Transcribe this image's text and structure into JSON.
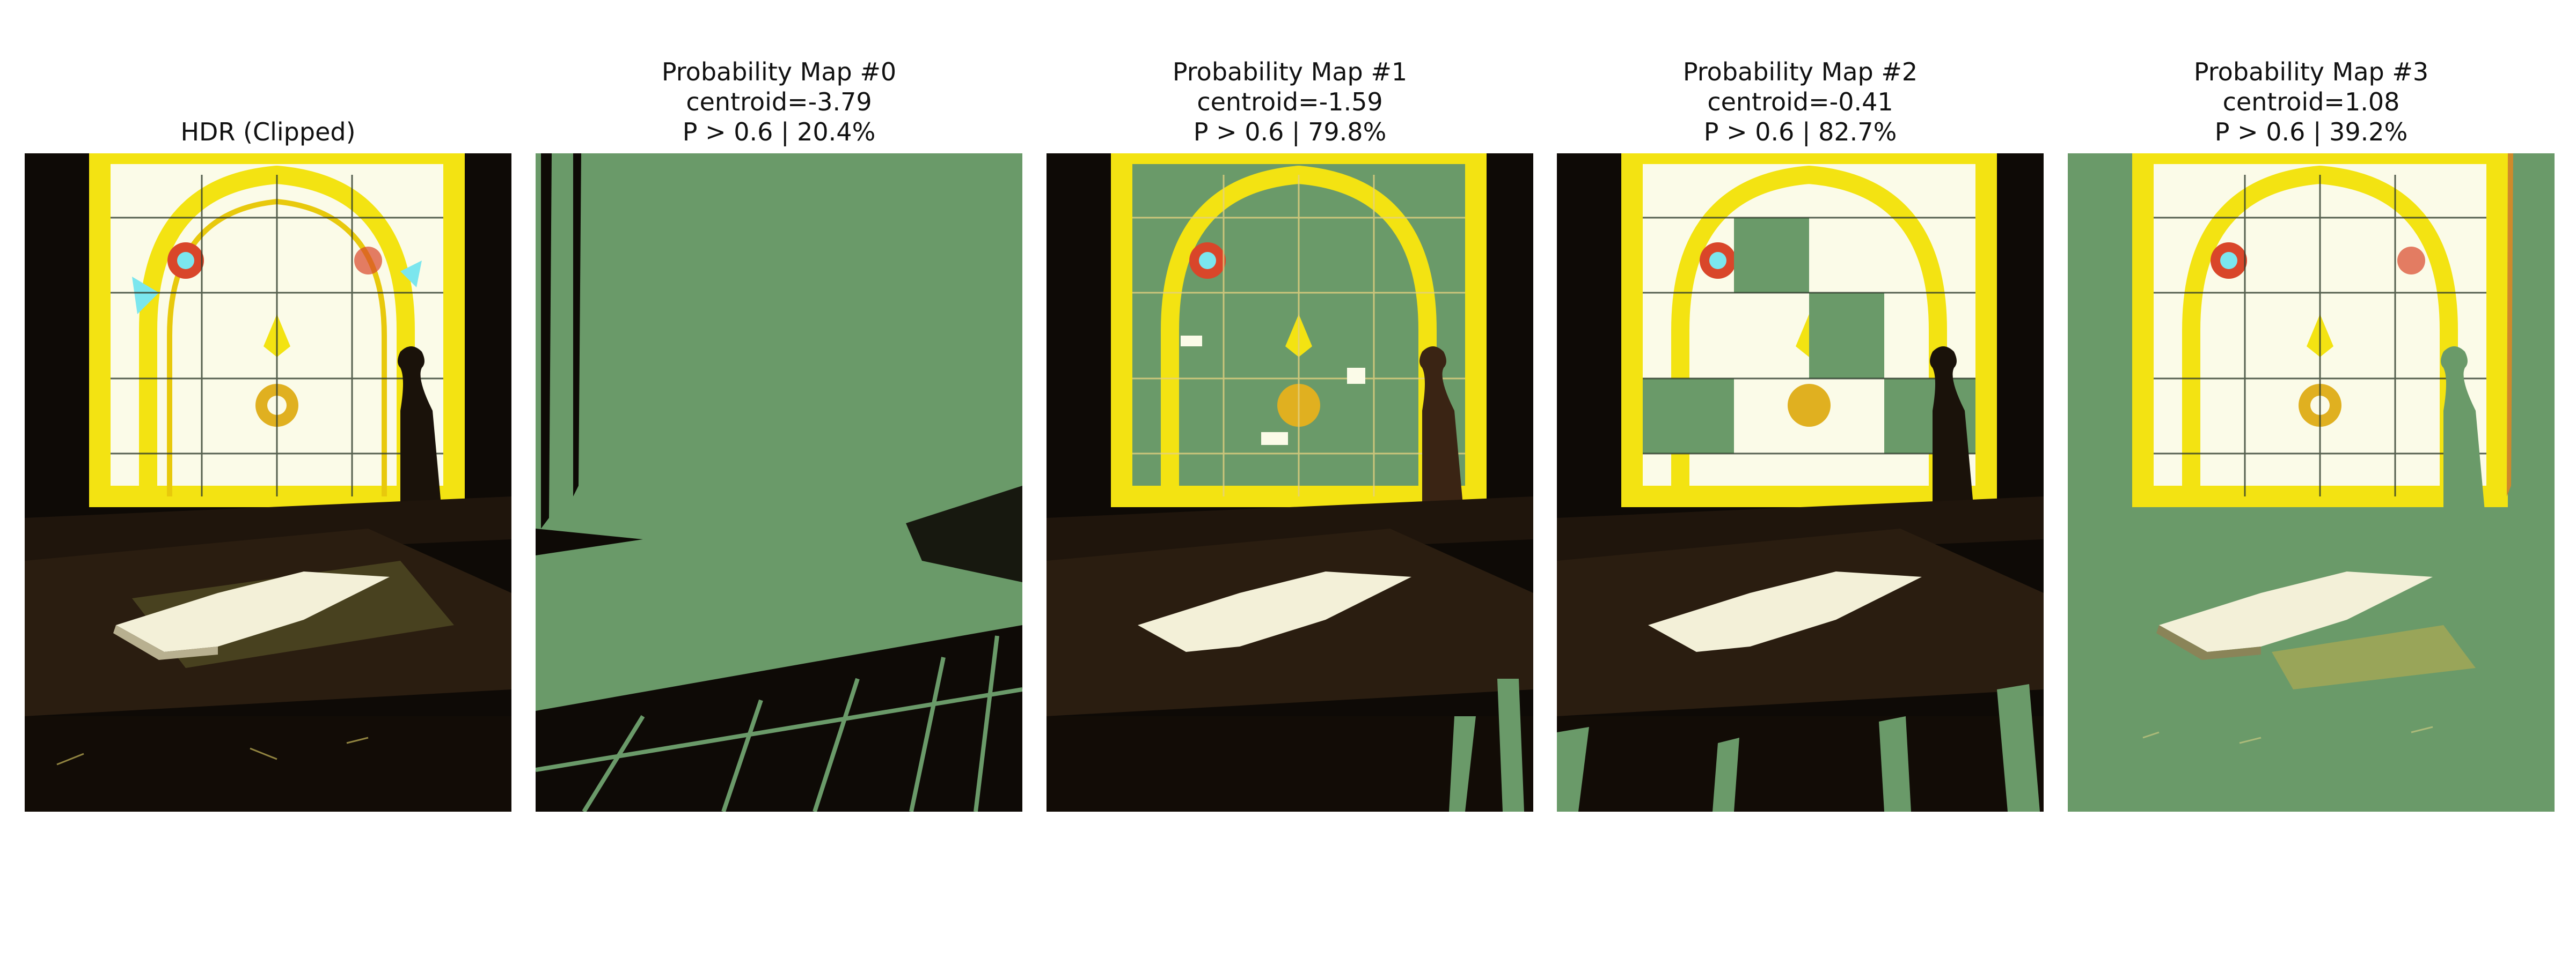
{
  "figure": {
    "panels": [
      {
        "title_lines": [
          "HDR (Clipped)"
        ]
      },
      {
        "title_lines": [
          "Probability Map #0",
          "centroid=-3.79",
          "P > 0.6 | 20.4%"
        ]
      },
      {
        "title_lines": [
          "Probability Map #1",
          "centroid=-1.59",
          "P > 0.6 | 79.8%"
        ]
      },
      {
        "title_lines": [
          "Probability Map #2",
          "centroid=-0.41",
          "P > 0.6 | 82.7%"
        ]
      },
      {
        "title_lines": [
          "Probability Map #3",
          "centroid=1.08",
          "P > 0.6 | 39.2%"
        ]
      }
    ],
    "colors": {
      "overlay_green": "#6a9a69",
      "dark": "#0e0a06",
      "wood": "#2a1d10",
      "glass_yellow": "#f3e312",
      "glass_cyan": "#7be6ee",
      "glass_red": "#d9462a",
      "glass_white": "#fbfbe8",
      "page": "#f3f0d8"
    }
  }
}
